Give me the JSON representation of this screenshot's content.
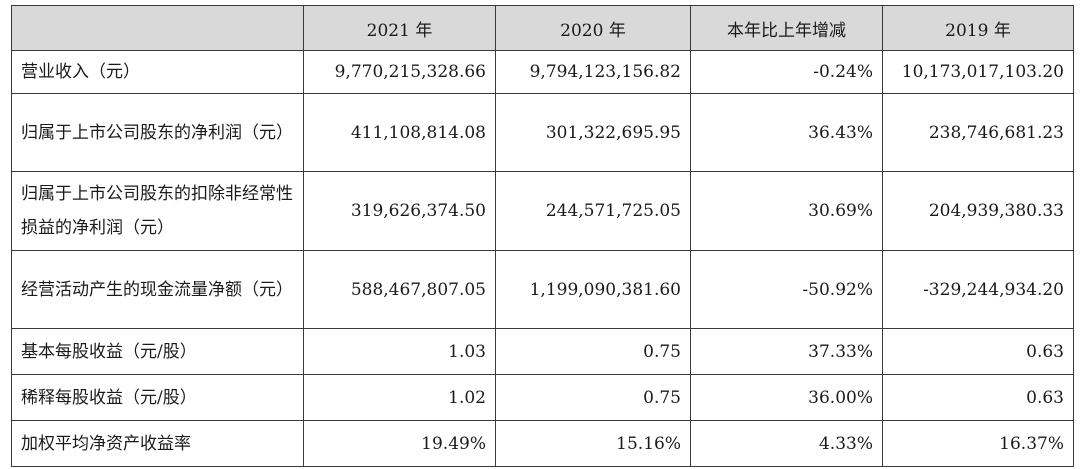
{
  "headers": [
    "",
    "2021 年",
    "2020 年",
    "本年比上年增减",
    "2019 年"
  ],
  "rows": [
    {
      "label": "营业收入（元）",
      "values": [
        "9,770,215,328.66",
        "9,794,123,156.82",
        "-0.24%",
        "10,173,017,103.20"
      ]
    },
    {
      "label": "归属于上市公司股东的净利润（元）",
      "values": [
        "411,108,814.08",
        "301,322,695.95",
        "36.43%",
        "238,746,681.23"
      ]
    },
    {
      "label": "归属于上市公司股东的扣除非经常性损益的净利润（元）",
      "values": [
        "319,626,374.50",
        "244,571,725.05",
        "30.69%",
        "204,939,380.33"
      ]
    },
    {
      "label": "经营活动产生的现金流量净额（元）",
      "values": [
        "588,467,807.05",
        "1,199,090,381.60",
        "-50.92%",
        "-329,244,934.20"
      ]
    },
    {
      "label": "基本每股收益（元/股）",
      "values": [
        "1.03",
        "0.75",
        "37.33%",
        "0.63"
      ]
    },
    {
      "label": "稀释每股收益（元/股）",
      "values": [
        "1.02",
        "0.75",
        "36.00%",
        "0.63"
      ]
    },
    {
      "label": "加权平均净资产收益率",
      "values": [
        "19.49%",
        "15.16%",
        "4.33%",
        "16.37%"
      ]
    }
  ]
}
